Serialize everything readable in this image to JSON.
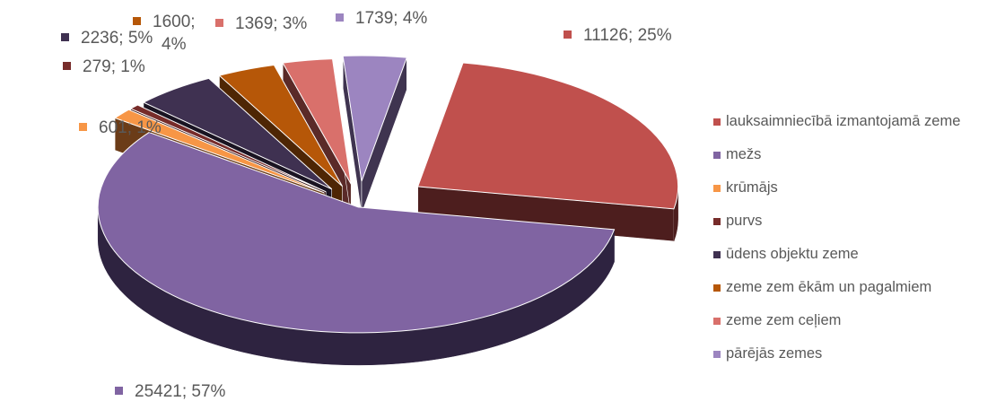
{
  "chart_data": {
    "type": "pie",
    "title": "",
    "style": "3d-exploded",
    "legend_position": "right",
    "label_format": "value; percent",
    "slices": [
      {
        "name": "lauksaimniecībā izmantojamā zeme",
        "value": 11126,
        "percent": 25,
        "label": "11126; 25%",
        "color": "#c0504d",
        "dark": "#4d1e1e"
      },
      {
        "name": "mežs",
        "value": 25421,
        "percent": 57,
        "label": "25421; 57%",
        "color": "#8064a2",
        "dark": "#2e2340"
      },
      {
        "name": "krūmājs",
        "value": 601,
        "percent": 1,
        "label": "601; 1%",
        "color": "#f79646",
        "dark": "#6b3c18"
      },
      {
        "name": "purvs",
        "value": 279,
        "percent": 1,
        "label": "279; 1%",
        "color": "#772c2a",
        "dark": "#3a1413"
      },
      {
        "name": "ūdens objektu zeme",
        "value": 2236,
        "percent": 5,
        "label": "2236; 5%",
        "color": "#3f3151",
        "dark": "#1a1422"
      },
      {
        "name": "zeme zem ēkām un pagalmiem",
        "value": 1600,
        "percent": 4,
        "label": "1600; 4%",
        "color": "#b65708",
        "dark": "#4e2604"
      },
      {
        "name": "zeme zem ceļiem",
        "value": 1369,
        "percent": 3,
        "label": "1369; 3%",
        "color": "#d9706b",
        "dark": "#5a2a28"
      },
      {
        "name": "pārējās zemes",
        "value": 1739,
        "percent": 4,
        "label": "1739; 4%",
        "color": "#9c85c0",
        "dark": "#3f3450"
      }
    ]
  }
}
